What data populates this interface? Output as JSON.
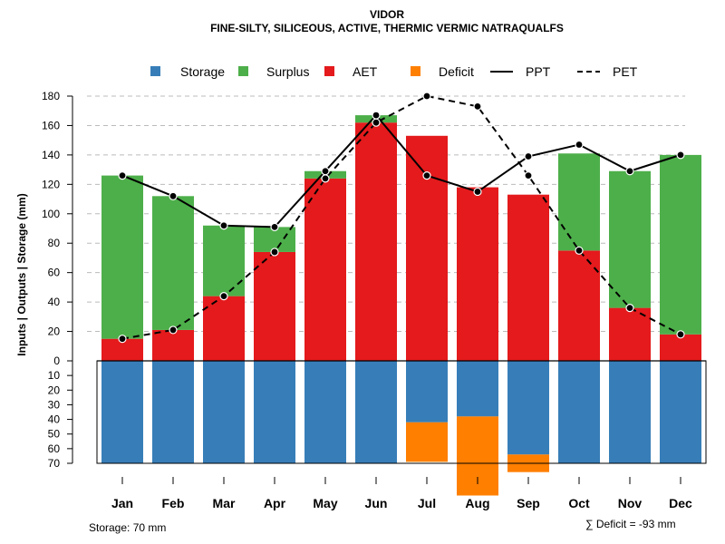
{
  "chart_data": {
    "type": "bar",
    "title": "VIDOR",
    "subtitle": "FINE-SILTY, SILICEOUS, ACTIVE, THERMIC VERMIC NATRAQUALFS",
    "ylabel": "Inputs | Outputs | Storage    (mm)",
    "ylim_top": [
      0,
      180
    ],
    "ylim_bottom": [
      0,
      70
    ],
    "yticks_top": [
      "0",
      "20",
      "40",
      "60",
      "80",
      "100",
      "120",
      "140",
      "160",
      "180"
    ],
    "yticks_bottom": [
      "10",
      "20",
      "30",
      "40",
      "50",
      "60",
      "70"
    ],
    "categories": [
      "Jan",
      "Feb",
      "Mar",
      "Apr",
      "May",
      "Jun",
      "Jul",
      "Aug",
      "Sep",
      "Oct",
      "Nov",
      "Dec"
    ],
    "legend": [
      "Storage",
      "Surplus",
      "AET",
      "Deficit",
      "PPT",
      "PET"
    ],
    "colors": {
      "storage": "#377EB8",
      "surplus": "#4DAF4A",
      "aet": "#E41A1C",
      "deficit": "#FF7F00",
      "line": "#000000"
    },
    "series": [
      {
        "name": "AET",
        "values": [
          15,
          21,
          44,
          74,
          124,
          162,
          153,
          118,
          113,
          75,
          36,
          18
        ]
      },
      {
        "name": "Surplus",
        "values": [
          111,
          91,
          48,
          17,
          5,
          5,
          0,
          0,
          0,
          66,
          93,
          122
        ]
      },
      {
        "name": "Storage",
        "values": [
          70,
          70,
          70,
          70,
          70,
          70,
          42,
          38,
          64,
          70,
          70,
          70
        ]
      },
      {
        "name": "Deficit",
        "values": [
          0,
          0,
          0,
          0,
          0,
          0,
          27,
          54,
          12,
          0,
          0,
          0
        ]
      },
      {
        "name": "PPT",
        "values": [
          126,
          112,
          92,
          91,
          129,
          167,
          126,
          115,
          139,
          147,
          129,
          140
        ]
      },
      {
        "name": "PET",
        "values": [
          15,
          21,
          44,
          74,
          124,
          162,
          180,
          173,
          126,
          75,
          36,
          18
        ]
      }
    ],
    "storage_note": "Storage: 70 mm",
    "deficit_note": "∑ Deficit = -93 mm"
  }
}
